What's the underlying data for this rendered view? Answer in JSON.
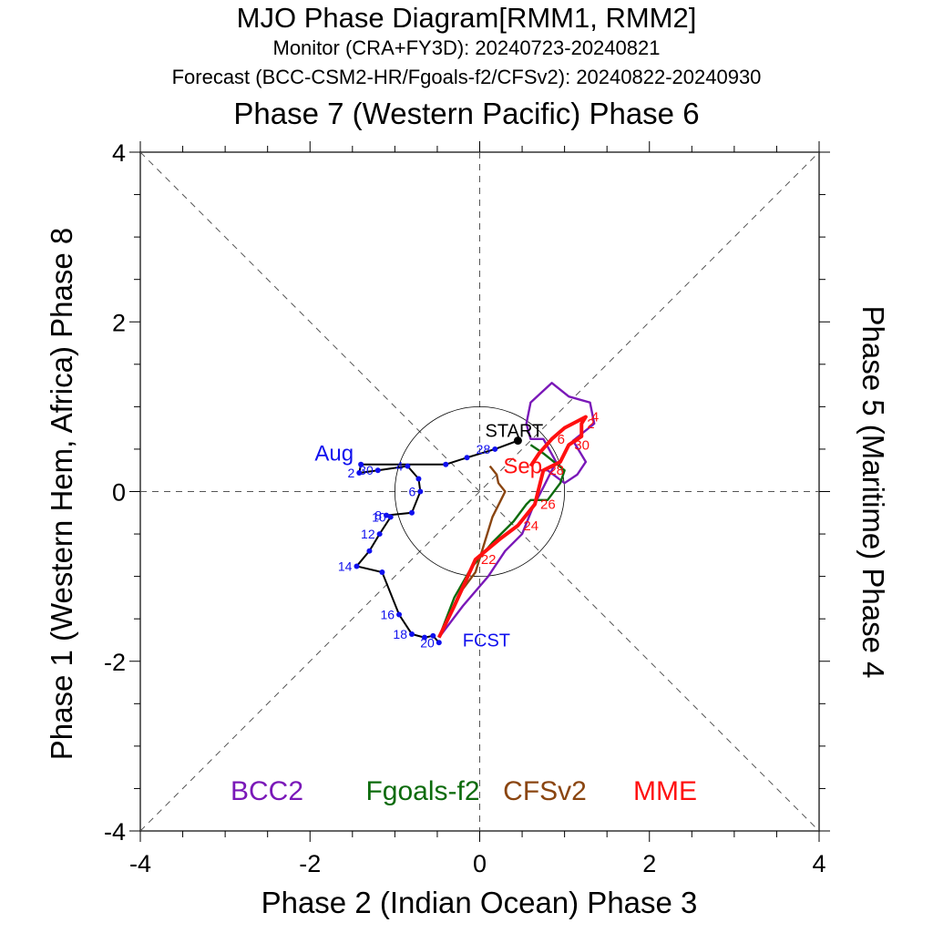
{
  "title": "MJO Phase Diagram[RMM1, RMM2]",
  "subtitle_monitor": "Monitor (CRA+FY3D): 20240723-20240821",
  "subtitle_forecast": "Forecast (BCC-CSM2-HR/Fgoals-f2/CFSv2): 20240822-20240930",
  "axis_labels": {
    "top": "Phase 7 (Western Pacific) Phase 6",
    "bottom": "Phase 2 (Indian Ocean) Phase 3",
    "left": "Phase 1 (Western Hem, Africa) Phase 8",
    "right": "Phase 5 (Maritime) Phase 4"
  },
  "legend": [
    {
      "label": "BCC2",
      "color": "#7a18b8"
    },
    {
      "label": "Fgoals-f2",
      "color": "#0c6b0c"
    },
    {
      "label": "CFSv2",
      "color": "#8a4510"
    },
    {
      "label": "MME",
      "color": "#ff1010"
    }
  ],
  "chart_data": {
    "type": "line",
    "xlabel": "Phase 2 (Indian Ocean) Phase 3",
    "ylabel": "Phase 1 (Western Hem, Africa) Phase 8",
    "xlim": [
      -4,
      4
    ],
    "ylim": [
      -4,
      4
    ],
    "x_ticks": [
      -4,
      -2,
      0,
      2,
      4
    ],
    "y_ticks": [
      -4,
      -2,
      0,
      2,
      4
    ],
    "grid": false,
    "unit_circle_radius": 1,
    "annotations": {
      "start": "START",
      "forecast_start": "FCST",
      "month_observed": "Aug",
      "month_forecast": "Sep"
    },
    "observed": {
      "name": "Monitor",
      "color": "#000000",
      "marker_color": "#1010ee",
      "points": [
        {
          "x": 0.45,
          "y": 0.6,
          "label": ""
        },
        {
          "x": 0.18,
          "y": 0.5,
          "label": "28"
        },
        {
          "x": -0.15,
          "y": 0.4,
          "label": ""
        },
        {
          "x": -0.4,
          "y": 0.32,
          "label": ""
        },
        {
          "x": -1.4,
          "y": 0.32,
          "label": "Aug"
        },
        {
          "x": -1.42,
          "y": 0.22,
          "label": "2"
        },
        {
          "x": -1.2,
          "y": 0.25,
          "label": "30"
        },
        {
          "x": -0.85,
          "y": 0.3,
          "label": "4"
        },
        {
          "x": -0.72,
          "y": 0.15,
          "label": ""
        },
        {
          "x": -0.7,
          "y": 0.0,
          "label": "6"
        },
        {
          "x": -0.8,
          "y": -0.25,
          "label": ""
        },
        {
          "x": -1.1,
          "y": -0.28,
          "label": "8"
        },
        {
          "x": -1.05,
          "y": -0.3,
          "label": "10"
        },
        {
          "x": -1.18,
          "y": -0.5,
          "label": "12"
        },
        {
          "x": -1.3,
          "y": -0.7,
          "label": ""
        },
        {
          "x": -1.45,
          "y": -0.88,
          "label": "14"
        },
        {
          "x": -1.15,
          "y": -0.95,
          "label": ""
        },
        {
          "x": -0.95,
          "y": -1.45,
          "label": "16"
        },
        {
          "x": -0.8,
          "y": -1.68,
          "label": "18"
        },
        {
          "x": -0.65,
          "y": -1.72,
          "label": ""
        },
        {
          "x": -0.55,
          "y": -1.7,
          "label": ""
        },
        {
          "x": -0.48,
          "y": -1.78,
          "label": "20"
        }
      ]
    },
    "series": [
      {
        "name": "BCC2",
        "color": "#7a18b8",
        "points": [
          [
            -0.48,
            -1.72
          ],
          [
            -0.2,
            -1.35
          ],
          [
            0.1,
            -1.0
          ],
          [
            0.3,
            -0.7
          ],
          [
            0.5,
            -0.5
          ],
          [
            0.62,
            -0.2
          ],
          [
            0.75,
            0.05
          ],
          [
            0.9,
            0.35
          ],
          [
            0.75,
            0.62
          ],
          [
            0.6,
            0.62
          ],
          [
            0.55,
            0.8
          ],
          [
            0.6,
            1.05
          ],
          [
            0.85,
            1.28
          ],
          [
            1.05,
            1.12
          ],
          [
            1.3,
            1.05
          ],
          [
            1.35,
            0.8
          ],
          [
            1.1,
            0.6
          ],
          [
            1.25,
            0.35
          ],
          [
            1.15,
            0.2
          ],
          [
            1.0,
            0.1
          ],
          [
            0.8,
            0.25
          ],
          [
            0.7,
            0.25
          ]
        ]
      },
      {
        "name": "Fgoals-f2",
        "color": "#0c6b0c",
        "points": [
          [
            -0.48,
            -1.72
          ],
          [
            -0.3,
            -1.25
          ],
          [
            -0.1,
            -0.9
          ],
          [
            0.15,
            -0.6
          ],
          [
            0.4,
            -0.35
          ],
          [
            0.55,
            -0.15
          ],
          [
            0.6,
            -0.1
          ],
          [
            0.8,
            -0.1
          ],
          [
            0.95,
            0.1
          ],
          [
            1.0,
            0.25
          ],
          [
            0.75,
            0.45
          ],
          [
            0.6,
            0.55
          ]
        ]
      },
      {
        "name": "CFSv2",
        "color": "#8a4510",
        "points": [
          [
            -0.48,
            -1.72
          ],
          [
            -0.35,
            -1.45
          ],
          [
            -0.2,
            -1.15
          ],
          [
            -0.05,
            -0.95
          ],
          [
            0.15,
            -0.3
          ],
          [
            0.25,
            -0.1
          ],
          [
            0.3,
            0.0
          ],
          [
            0.22,
            0.1
          ],
          [
            0.2,
            0.2
          ],
          [
            0.12,
            0.3
          ]
        ]
      },
      {
        "name": "MME",
        "color": "#ff1010",
        "points": [
          [
            -0.48,
            -1.72
          ],
          [
            -0.3,
            -1.35
          ],
          [
            -0.05,
            -0.8
          ],
          [
            0.25,
            -0.55
          ],
          [
            0.45,
            -0.4
          ],
          [
            0.65,
            -0.15
          ],
          [
            0.7,
            0.05
          ],
          [
            0.75,
            0.25
          ],
          [
            0.95,
            0.35
          ],
          [
            1.05,
            0.55
          ],
          [
            1.2,
            0.65
          ],
          [
            1.2,
            0.8
          ],
          [
            1.25,
            0.88
          ],
          [
            1.0,
            0.75
          ],
          [
            0.85,
            0.62
          ],
          [
            0.7,
            0.45
          ],
          [
            0.6,
            0.3
          ]
        ],
        "labels": [
          "22",
          "24",
          "26",
          "28",
          "30",
          "2",
          "4",
          "6"
        ]
      }
    ]
  }
}
